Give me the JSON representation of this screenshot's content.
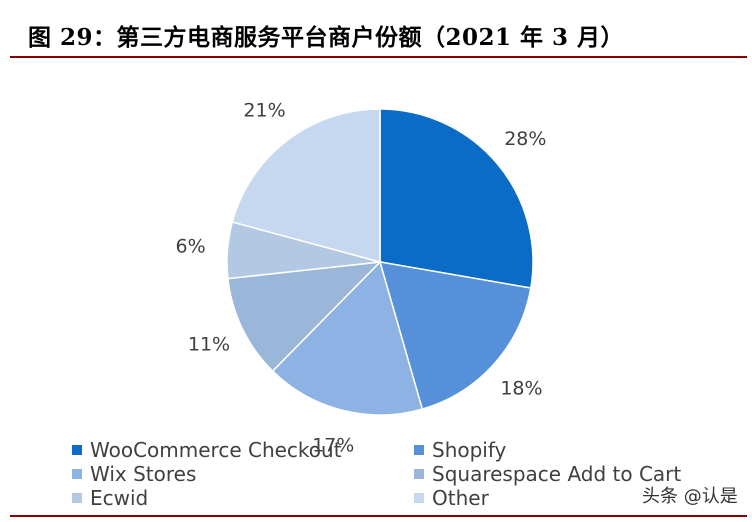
{
  "header": {
    "title": "图 29：第三方电商服务平台商户份额（2021 年 3 月）"
  },
  "chart_data": {
    "type": "pie",
    "title": "",
    "slices": [
      {
        "label": "WooCommerce Checkout",
        "value": 28,
        "display": "28%",
        "color": "#0a6cc7"
      },
      {
        "label": "Shopify",
        "value": 18,
        "display": "18%",
        "color": "#5590d9"
      },
      {
        "label": "Wix Stores",
        "value": 17,
        "display": "17%",
        "color": "#8cb3e3"
      },
      {
        "label": "Squarespace Add to Cart",
        "value": 11,
        "display": "11%",
        "color": "#9ab6d8"
      },
      {
        "label": "Ecwid",
        "value": 6,
        "display": "6%",
        "color": "#b3c9e3"
      },
      {
        "label": "Other",
        "value": 21,
        "display": "21%",
        "color": "#c5d8ef"
      }
    ],
    "start_angle": "12 o'clock",
    "direction": "clockwise",
    "legend_position": "bottom"
  },
  "legend": {
    "items": [
      {
        "label": "WooCommerce Checkout",
        "color": "#0a6cc7"
      },
      {
        "label": "Shopify",
        "color": "#5590d9"
      },
      {
        "label": "Wix Stores",
        "color": "#8cb3e3"
      },
      {
        "label": "Squarespace Add to Cart",
        "color": "#9ab6d8"
      },
      {
        "label": "Ecwid",
        "color": "#b3c9e3"
      },
      {
        "label": "Other",
        "color": "#c5d8ef"
      }
    ]
  },
  "watermark": {
    "text": "头条 @认是"
  },
  "colors": {
    "rule": "#8b0000",
    "label_text": "#404040"
  }
}
